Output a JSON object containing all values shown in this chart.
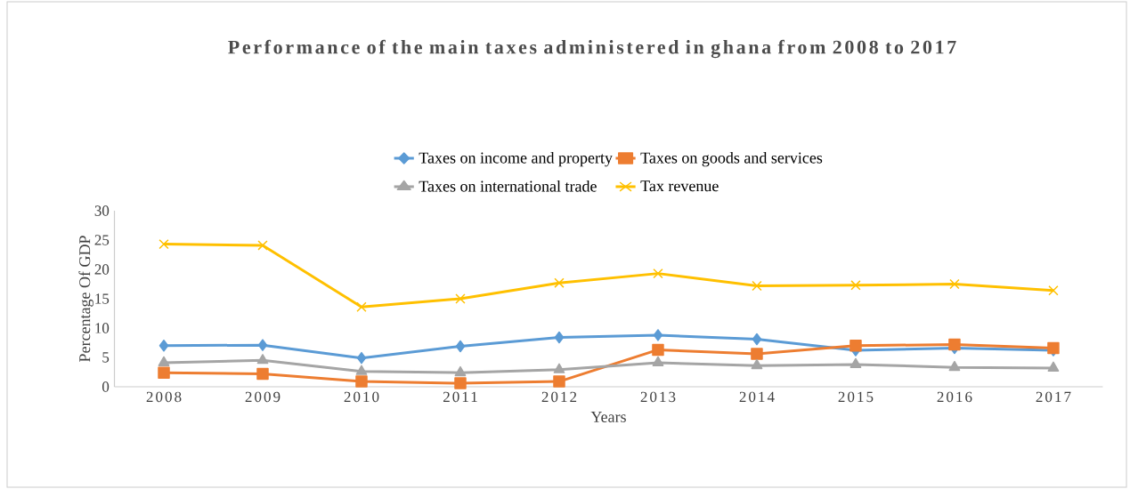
{
  "chart_data": {
    "type": "line",
    "title": "Performance of the main taxes administered in ghana from 2008 to 2017",
    "xlabel": "Years",
    "ylabel": "Percentage Of GDP",
    "categories": [
      "2008",
      "2009",
      "2010",
      "2011",
      "2012",
      "2013",
      "2014",
      "2015",
      "2016",
      "2017"
    ],
    "series": [
      {
        "name": "Taxes on income and property",
        "color": "#5b9bd5",
        "marker": "diamond",
        "values": [
          7.0,
          7.1,
          4.9,
          6.9,
          8.4,
          8.8,
          8.1,
          6.2,
          6.6,
          6.2
        ]
      },
      {
        "name": "Taxes on goods and services",
        "color": "#ed7d31",
        "marker": "square",
        "values": [
          2.4,
          2.2,
          0.9,
          0.6,
          0.9,
          6.3,
          5.6,
          7.0,
          7.2,
          6.6
        ]
      },
      {
        "name": "Taxes on international trade",
        "color": "#a5a5a5",
        "marker": "triangle",
        "values": [
          4.1,
          4.5,
          2.6,
          2.4,
          2.9,
          4.1,
          3.6,
          3.8,
          3.3,
          3.2
        ]
      },
      {
        "name": "Tax revenue",
        "color": "#ffc000",
        "marker": "cross",
        "values": [
          24.3,
          24.1,
          13.6,
          15.0,
          17.7,
          19.3,
          17.2,
          17.3,
          17.5,
          16.4
        ]
      }
    ],
    "ylim": [
      0,
      30
    ],
    "yticks": [
      0,
      5,
      10,
      15,
      20,
      25,
      30
    ],
    "grid": false,
    "legend": "top",
    "line_style": "solid"
  }
}
